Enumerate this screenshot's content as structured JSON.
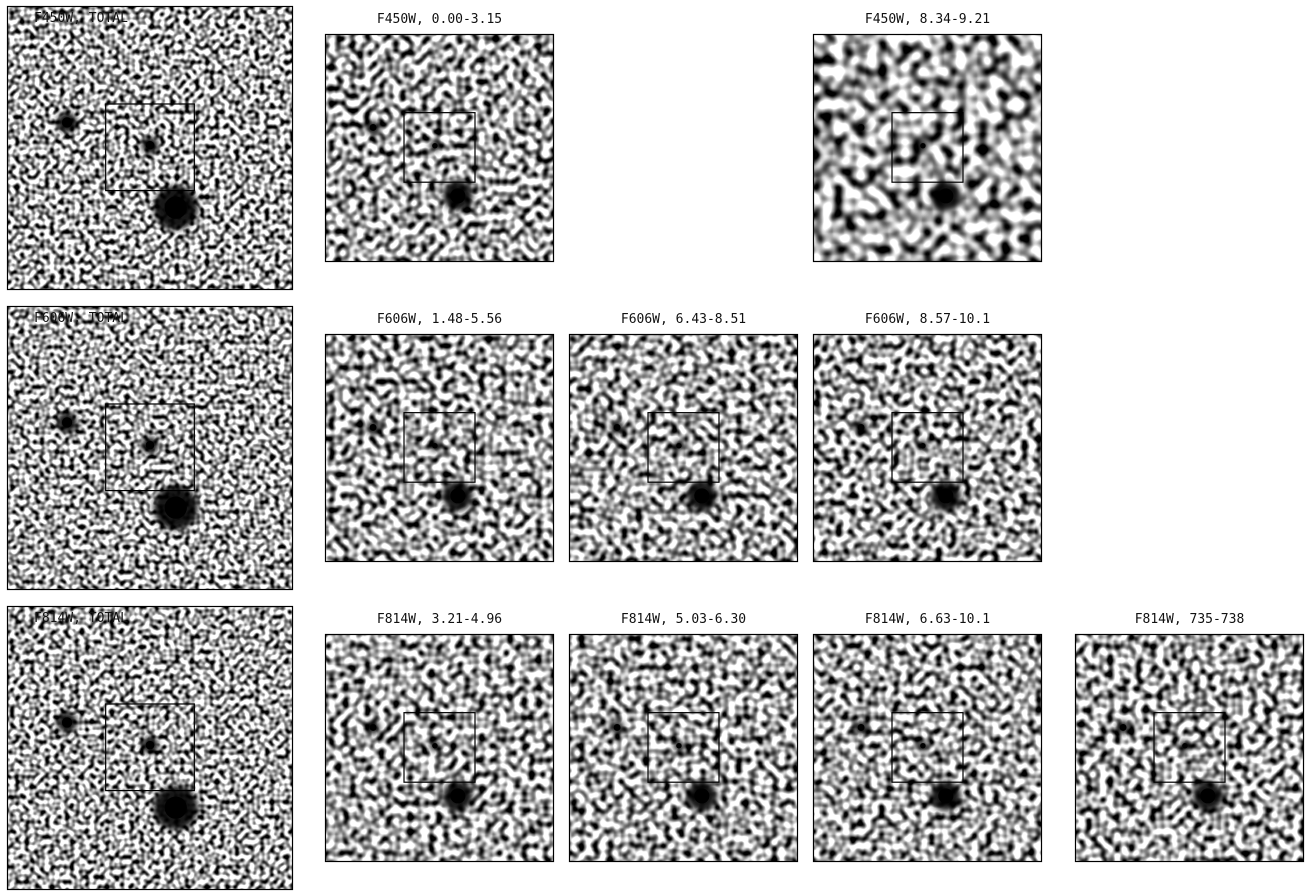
{
  "rows": [
    {
      "panels": [
        {
          "label": "F450W, TOTAL"
        },
        {
          "label": "F450W, 0.00-3.15"
        },
        {
          "label": "F450W, 8.34-9.21"
        }
      ]
    },
    {
      "panels": [
        {
          "label": "F606W, TOTAL"
        },
        {
          "label": "F606W, 1.48-5.56"
        },
        {
          "label": "F606W, 6.43-8.51"
        },
        {
          "label": "F606W, 8.57-10.1"
        }
      ]
    },
    {
      "panels": [
        {
          "label": "F814W, TOTAL"
        },
        {
          "label": "F814W, 3.21-4.96"
        },
        {
          "label": "F814W, 5.03-6.30"
        },
        {
          "label": "F814W, 6.63-10.1"
        },
        {
          "label": "F814W, 735-738"
        }
      ]
    }
  ]
}
